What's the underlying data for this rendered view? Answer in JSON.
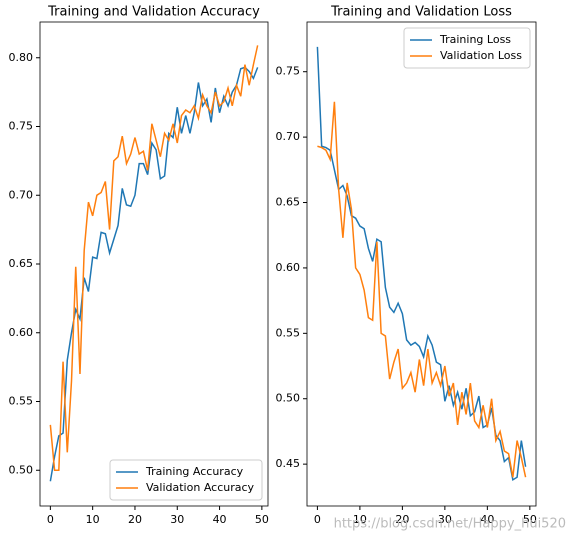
{
  "chart_data": [
    {
      "type": "line",
      "title": "Training and Validation Accuracy",
      "x": [
        0,
        1,
        2,
        3,
        4,
        5,
        6,
        7,
        8,
        9,
        10,
        11,
        12,
        13,
        14,
        15,
        16,
        17,
        18,
        19,
        20,
        21,
        22,
        23,
        24,
        25,
        26,
        27,
        28,
        29,
        30,
        31,
        32,
        33,
        34,
        35,
        36,
        37,
        38,
        39,
        40,
        41,
        42,
        43,
        44,
        45,
        46,
        47,
        48,
        49
      ],
      "series": [
        {
          "name": "Training Accuracy",
          "color": "#1f77b4",
          "values": [
            0.492,
            0.51,
            0.525,
            0.527,
            0.58,
            0.6,
            0.617,
            0.61,
            0.64,
            0.63,
            0.655,
            0.654,
            0.673,
            0.672,
            0.658,
            0.668,
            0.678,
            0.705,
            0.693,
            0.692,
            0.7,
            0.723,
            0.723,
            0.715,
            0.738,
            0.733,
            0.712,
            0.714,
            0.745,
            0.742,
            0.764,
            0.745,
            0.758,
            0.745,
            0.76,
            0.782,
            0.765,
            0.77,
            0.753,
            0.778,
            0.76,
            0.772,
            0.765,
            0.775,
            0.78,
            0.792,
            0.793,
            0.79,
            0.785,
            0.793
          ]
        },
        {
          "name": "Validation Accuracy",
          "color": "#ff7f0e",
          "values": [
            0.533,
            0.5,
            0.5,
            0.579,
            0.513,
            0.565,
            0.648,
            0.57,
            0.66,
            0.695,
            0.685,
            0.7,
            0.702,
            0.71,
            0.675,
            0.725,
            0.728,
            0.743,
            0.723,
            0.73,
            0.742,
            0.73,
            0.732,
            0.718,
            0.752,
            0.74,
            0.728,
            0.745,
            0.74,
            0.752,
            0.738,
            0.758,
            0.762,
            0.76,
            0.765,
            0.756,
            0.773,
            0.765,
            0.76,
            0.775,
            0.765,
            0.768,
            0.778,
            0.765,
            0.78,
            0.772,
            0.795,
            0.78,
            0.795,
            0.809
          ]
        }
      ],
      "xlim": [
        -2.45,
        51.45
      ],
      "xticks": [
        0,
        10,
        20,
        30,
        40,
        50
      ],
      "ylim": [
        0.474,
        0.826
      ],
      "yticks": [
        {
          "value": 0.5,
          "label": "0.50"
        },
        {
          "value": 0.55,
          "label": "0.55"
        },
        {
          "value": 0.6,
          "label": "0.60"
        },
        {
          "value": 0.65,
          "label": "0.65"
        },
        {
          "value": 0.7,
          "label": "0.70"
        },
        {
          "value": 0.75,
          "label": "0.75"
        },
        {
          "value": 0.8,
          "label": "0.80"
        }
      ],
      "legend": "lower right"
    },
    {
      "type": "line",
      "title": "Training and Validation Loss",
      "x": [
        0,
        1,
        2,
        3,
        4,
        5,
        6,
        7,
        8,
        9,
        10,
        11,
        12,
        13,
        14,
        15,
        16,
        17,
        18,
        19,
        20,
        21,
        22,
        23,
        24,
        25,
        26,
        27,
        28,
        29,
        30,
        31,
        32,
        33,
        34,
        35,
        36,
        37,
        38,
        39,
        40,
        41,
        42,
        43,
        44,
        45,
        46,
        47,
        48,
        49
      ],
      "series": [
        {
          "name": "Training Loss",
          "color": "#1f77b4",
          "values": [
            0.769,
            0.693,
            0.692,
            0.69,
            0.675,
            0.66,
            0.663,
            0.655,
            0.64,
            0.638,
            0.632,
            0.63,
            0.615,
            0.605,
            0.622,
            0.62,
            0.585,
            0.57,
            0.566,
            0.573,
            0.565,
            0.545,
            0.541,
            0.543,
            0.54,
            0.532,
            0.548,
            0.541,
            0.528,
            0.526,
            0.498,
            0.51,
            0.495,
            0.505,
            0.492,
            0.508,
            0.487,
            0.49,
            0.502,
            0.478,
            0.48,
            0.493,
            0.472,
            0.468,
            0.452,
            0.455,
            0.438,
            0.44,
            0.468,
            0.448
          ]
        },
        {
          "name": "Validation Loss",
          "color": "#ff7f0e",
          "values": [
            0.693,
            0.692,
            0.69,
            0.683,
            0.727,
            0.66,
            0.623,
            0.665,
            0.645,
            0.6,
            0.595,
            0.583,
            0.562,
            0.56,
            0.62,
            0.55,
            0.548,
            0.515,
            0.528,
            0.538,
            0.508,
            0.512,
            0.52,
            0.505,
            0.53,
            0.51,
            0.538,
            0.512,
            0.52,
            0.51,
            0.525,
            0.502,
            0.512,
            0.48,
            0.505,
            0.488,
            0.512,
            0.483,
            0.478,
            0.495,
            0.478,
            0.5,
            0.468,
            0.475,
            0.46,
            0.458,
            0.44,
            0.468,
            0.455,
            0.44
          ]
        }
      ],
      "xlim": [
        -2.45,
        51.45
      ],
      "xticks": [
        0,
        10,
        20,
        30,
        40,
        50
      ],
      "ylim": [
        0.418,
        0.788
      ],
      "yticks": [
        {
          "value": 0.45,
          "label": "0.45"
        },
        {
          "value": 0.5,
          "label": "0.50"
        },
        {
          "value": 0.55,
          "label": "0.55"
        },
        {
          "value": 0.6,
          "label": "0.60"
        },
        {
          "value": 0.65,
          "label": "0.65"
        },
        {
          "value": 0.7,
          "label": "0.70"
        },
        {
          "value": 0.75,
          "label": "0.75"
        }
      ],
      "legend": "upper right"
    }
  ],
  "watermark": "https://blog.csdn.net/Happy_hui520"
}
